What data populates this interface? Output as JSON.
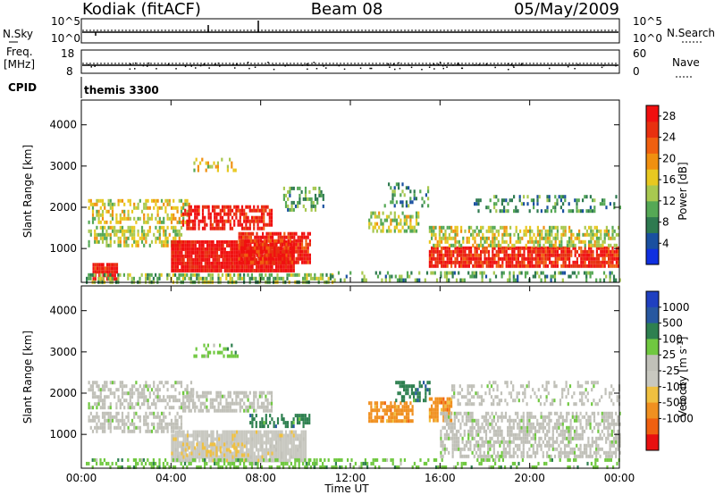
{
  "header": {
    "station": "Kodiak (fitACF)",
    "beam": "Beam 08",
    "date": "05/May/2009"
  },
  "top_panels": {
    "nsky_label": "N.Sky",
    "nsky_ticks": [
      "10^5",
      "10^0"
    ],
    "nsearch_label": "N.Search",
    "nsearch_ticks": [
      "10^5",
      "10^0"
    ],
    "freq_label": "Freq.",
    "freq_unit": "[MHz]",
    "freq_ticks": [
      "18",
      "8"
    ],
    "nave_label": "Nave",
    "nave_ticks": [
      "60",
      "0"
    ],
    "cpid_label": "CPID",
    "cpid_value": "themis 3300"
  },
  "colors": {
    "power_scale": [
      "#1030e0",
      "#1a50a0",
      "#2e7a50",
      "#55a855",
      "#a8c850",
      "#e8c820",
      "#f09010",
      "#f06010",
      "#e83010",
      "#f01010"
    ],
    "velocity_scale": [
      "#2040c0",
      "#2858a0",
      "#2e8050",
      "#70c840",
      "#c0c0b8",
      "#c8c8c0",
      "#f0c040",
      "#f09020",
      "#f06010",
      "#e81010"
    ]
  },
  "chart_data": [
    {
      "type": "heatmap",
      "name": "power",
      "ylabel": "Slant Range [km]",
      "y_ticks": [
        "1000",
        "2000",
        "3000",
        "4000"
      ],
      "ylim": [
        180,
        4600
      ],
      "xlim": [
        0,
        24
      ],
      "x_ticks": [
        "00:00",
        "04:00",
        "08:00",
        "12:00",
        "16:00",
        "20:00",
        "00:00"
      ],
      "colorbar_label": "Power [dB]",
      "colorbar_ticks": [
        "4",
        "8",
        "12",
        "16",
        "20",
        "24",
        "28"
      ],
      "colorbar_range": [
        0,
        30
      ],
      "regions": [
        {
          "t0": 0.5,
          "t1": 1.6,
          "r0": 300,
          "r1": 650,
          "level": 28,
          "density": 0.9
        },
        {
          "t0": 0.3,
          "t1": 4.5,
          "r0": 1050,
          "r1": 1550,
          "level": 14,
          "density": 0.55
        },
        {
          "t0": 0.3,
          "t1": 4.8,
          "r0": 1600,
          "r1": 2200,
          "level": 16,
          "density": 0.45
        },
        {
          "t0": 4.5,
          "t1": 8.5,
          "r0": 1500,
          "r1": 2050,
          "level": 28,
          "density": 0.7
        },
        {
          "t0": 4.0,
          "t1": 9.5,
          "r0": 500,
          "r1": 1200,
          "level": 29,
          "density": 0.95
        },
        {
          "t0": 7.0,
          "t1": 10.2,
          "r0": 700,
          "r1": 1400,
          "level": 27,
          "density": 0.85
        },
        {
          "t0": 5.0,
          "t1": 7.0,
          "r0": 2900,
          "r1": 3200,
          "level": 16,
          "density": 0.3
        },
        {
          "t0": 9.0,
          "t1": 10.8,
          "r0": 1900,
          "r1": 2500,
          "level": 10,
          "density": 0.35
        },
        {
          "t0": 0.2,
          "t1": 11.2,
          "r0": 220,
          "r1": 400,
          "level": 12,
          "density": 0.55
        },
        {
          "t0": 12.8,
          "t1": 15.0,
          "r0": 1400,
          "r1": 1900,
          "level": 14,
          "density": 0.55
        },
        {
          "t0": 13.5,
          "t1": 15.5,
          "r0": 2000,
          "r1": 2600,
          "level": 8,
          "density": 0.3
        },
        {
          "t0": 15.5,
          "t1": 24.0,
          "r0": 550,
          "r1": 1050,
          "level": 27,
          "density": 0.85
        },
        {
          "t0": 15.5,
          "t1": 24.0,
          "r0": 1100,
          "r1": 1550,
          "level": 15,
          "density": 0.55
        },
        {
          "t0": 17.5,
          "t1": 24.0,
          "r0": 1900,
          "r1": 2300,
          "level": 8,
          "density": 0.3
        },
        {
          "t0": 11.0,
          "t1": 24.0,
          "r0": 220,
          "r1": 450,
          "level": 10,
          "density": 0.35
        }
      ]
    },
    {
      "type": "heatmap",
      "name": "velocity",
      "ylabel": "Slant Range [km]",
      "y_ticks": [
        "1000",
        "2000",
        "3000",
        "4000"
      ],
      "ylim": [
        180,
        4600
      ],
      "xlim": [
        0,
        24
      ],
      "x_ticks": [
        "00:00",
        "04:00",
        "08:00",
        "12:00",
        "16:00",
        "20:00",
        "00:00"
      ],
      "xlabel": "Time UT",
      "colorbar_label": "Velocity [m s",
      "colorbar_exponent": "-1",
      "colorbar_suffix": "]",
      "colorbar_ticks": [
        "1000",
        "500",
        "100",
        "25",
        "-25",
        "-100",
        "-500",
        "-1000"
      ],
      "regions": [
        {
          "t0": 0.3,
          "t1": 4.5,
          "r0": 1050,
          "r1": 1550,
          "level": 4,
          "density": 0.55
        },
        {
          "t0": 0.3,
          "t1": 5.0,
          "r0": 1650,
          "r1": 2300,
          "level": 4,
          "density": 0.5
        },
        {
          "t0": 4.0,
          "t1": 10.0,
          "r0": 400,
          "r1": 1100,
          "level": 5,
          "density": 0.9
        },
        {
          "t0": 4.5,
          "t1": 7.5,
          "r0": 500,
          "r1": 800,
          "level": 6,
          "density": 0.3
        },
        {
          "t0": 7.5,
          "t1": 10.2,
          "r0": 1200,
          "r1": 1500,
          "level": 2,
          "density": 0.5
        },
        {
          "t0": 4.5,
          "t1": 8.5,
          "r0": 1550,
          "r1": 2050,
          "level": 4,
          "density": 0.6
        },
        {
          "t0": 5.0,
          "t1": 7.0,
          "r0": 2900,
          "r1": 3200,
          "level": 3,
          "density": 0.3
        },
        {
          "t0": 0.2,
          "t1": 11.5,
          "r0": 220,
          "r1": 420,
          "level": 3,
          "density": 0.4
        },
        {
          "t0": 12.8,
          "t1": 14.8,
          "r0": 1300,
          "r1": 1800,
          "level": 7,
          "density": 0.7
        },
        {
          "t0": 14.0,
          "t1": 15.5,
          "r0": 1800,
          "r1": 2300,
          "level": 2,
          "density": 0.5
        },
        {
          "t0": 15.5,
          "t1": 16.5,
          "r0": 1300,
          "r1": 1900,
          "level": 7,
          "density": 0.75
        },
        {
          "t0": 16.0,
          "t1": 24.0,
          "r0": 500,
          "r1": 1550,
          "level": 4,
          "density": 0.6
        },
        {
          "t0": 16.5,
          "t1": 24.0,
          "r0": 1750,
          "r1": 2300,
          "level": 4,
          "density": 0.3
        },
        {
          "t0": 10.0,
          "t1": 24.0,
          "r0": 220,
          "r1": 420,
          "level": 3,
          "density": 0.3
        }
      ]
    }
  ]
}
